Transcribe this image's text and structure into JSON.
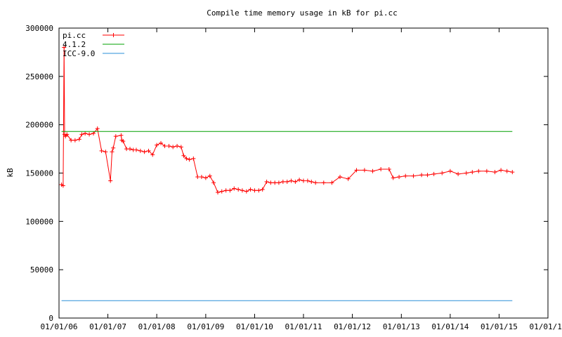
{
  "chart_data": {
    "type": "line",
    "title": "Compile time memory usage in kB for pi.cc",
    "xlabel": "",
    "ylabel": "kB",
    "x_ticks": [
      "01/01/06",
      "01/01/07",
      "01/01/08",
      "01/01/09",
      "01/01/10",
      "01/01/11",
      "01/01/12",
      "01/01/13",
      "01/01/14",
      "01/01/15",
      "01/01/16"
    ],
    "y_ticks": [
      "0",
      "50000",
      "100000",
      "150000",
      "200000",
      "250000",
      "300000"
    ],
    "xlim": [
      "2006-01-01",
      "2016-01-01"
    ],
    "ylim": [
      0,
      300000
    ],
    "grid": false,
    "legend_position": "top-left",
    "series": [
      {
        "name": "pi.cc",
        "color": "#ff0000",
        "marker": "plus",
        "x": [
          "2006-01-20",
          "2006-02-01",
          "2006-02-08",
          "2006-02-12",
          "2006-02-18",
          "2006-03-01",
          "2006-04-01",
          "2006-05-01",
          "2006-06-01",
          "2006-06-20",
          "2006-07-15",
          "2006-08-15",
          "2006-09-15",
          "2006-10-15",
          "2006-11-15",
          "2006-12-15",
          "2007-01-20",
          "2007-02-01",
          "2007-02-10",
          "2007-03-01",
          "2007-04-10",
          "2007-04-15",
          "2007-04-25",
          "2007-05-20",
          "2007-06-15",
          "2007-07-10",
          "2007-08-01",
          "2007-09-01",
          "2007-10-01",
          "2007-11-01",
          "2007-12-01",
          "2008-01-01",
          "2008-02-01",
          "2008-03-01",
          "2008-04-01",
          "2008-05-01",
          "2008-06-01",
          "2008-07-01",
          "2008-07-20",
          "2008-08-10",
          "2008-09-01",
          "2008-10-01",
          "2008-11-01",
          "2008-12-01",
          "2009-01-01",
          "2009-02-01",
          "2009-03-01",
          "2009-04-01",
          "2009-05-01",
          "2009-06-01",
          "2009-07-01",
          "2009-08-01",
          "2009-09-01",
          "2009-10-01",
          "2009-11-01",
          "2009-12-01",
          "2010-01-01",
          "2010-02-01",
          "2010-03-01",
          "2010-04-01",
          "2010-05-01",
          "2010-06-01",
          "2010-07-01",
          "2010-08-01",
          "2010-09-01",
          "2010-10-01",
          "2010-11-01",
          "2010-12-01",
          "2011-01-01",
          "2011-02-01",
          "2011-03-01",
          "2011-04-01",
          "2011-06-01",
          "2011-08-01",
          "2011-10-01",
          "2011-12-01",
          "2012-02-01",
          "2012-04-01",
          "2012-06-01",
          "2012-08-01",
          "2012-10-01",
          "2012-11-01",
          "2012-12-15",
          "2013-02-01",
          "2013-04-01",
          "2013-06-01",
          "2013-07-15",
          "2013-09-01",
          "2013-11-01",
          "2014-01-01",
          "2014-03-01",
          "2014-05-01",
          "2014-06-15",
          "2014-08-01",
          "2014-10-01",
          "2014-12-01",
          "2015-01-15",
          "2015-03-01",
          "2015-04-10"
        ],
        "values": [
          138000,
          137000,
          280000,
          190000,
          188000,
          190000,
          184000,
          184000,
          185000,
          190000,
          191000,
          190000,
          191000,
          196000,
          173000,
          172000,
          142000,
          172000,
          176000,
          188000,
          189000,
          184000,
          183000,
          175000,
          175000,
          174000,
          174000,
          173000,
          172000,
          173000,
          169000,
          179000,
          181000,
          178000,
          178000,
          177000,
          178000,
          177000,
          168000,
          165000,
          164000,
          165000,
          146000,
          146000,
          145000,
          147000,
          140000,
          130000,
          131000,
          132000,
          132000,
          134000,
          133000,
          132000,
          131000,
          133000,
          132000,
          132000,
          133000,
          141000,
          140000,
          140000,
          140000,
          141000,
          141000,
          142000,
          141000,
          143000,
          142000,
          142000,
          141000,
          140000,
          140000,
          140000,
          146000,
          144000,
          153000,
          153000,
          152000,
          154000,
          154000,
          145000,
          146000,
          147000,
          147000,
          148000,
          148000,
          149000,
          150000,
          152000,
          149000,
          150000,
          151000,
          152000,
          152000,
          151000,
          153000,
          152000,
          151000
        ]
      },
      {
        "name": "4.1.2",
        "color": "#00a000",
        "x": [
          "2006-01-20",
          "2015-04-10"
        ],
        "values": [
          193000,
          193000
        ]
      },
      {
        "name": "ICC-9.0",
        "color": "#2a8fd8",
        "x": [
          "2006-01-20",
          "2015-04-10"
        ],
        "values": [
          18000,
          18000
        ]
      }
    ]
  }
}
